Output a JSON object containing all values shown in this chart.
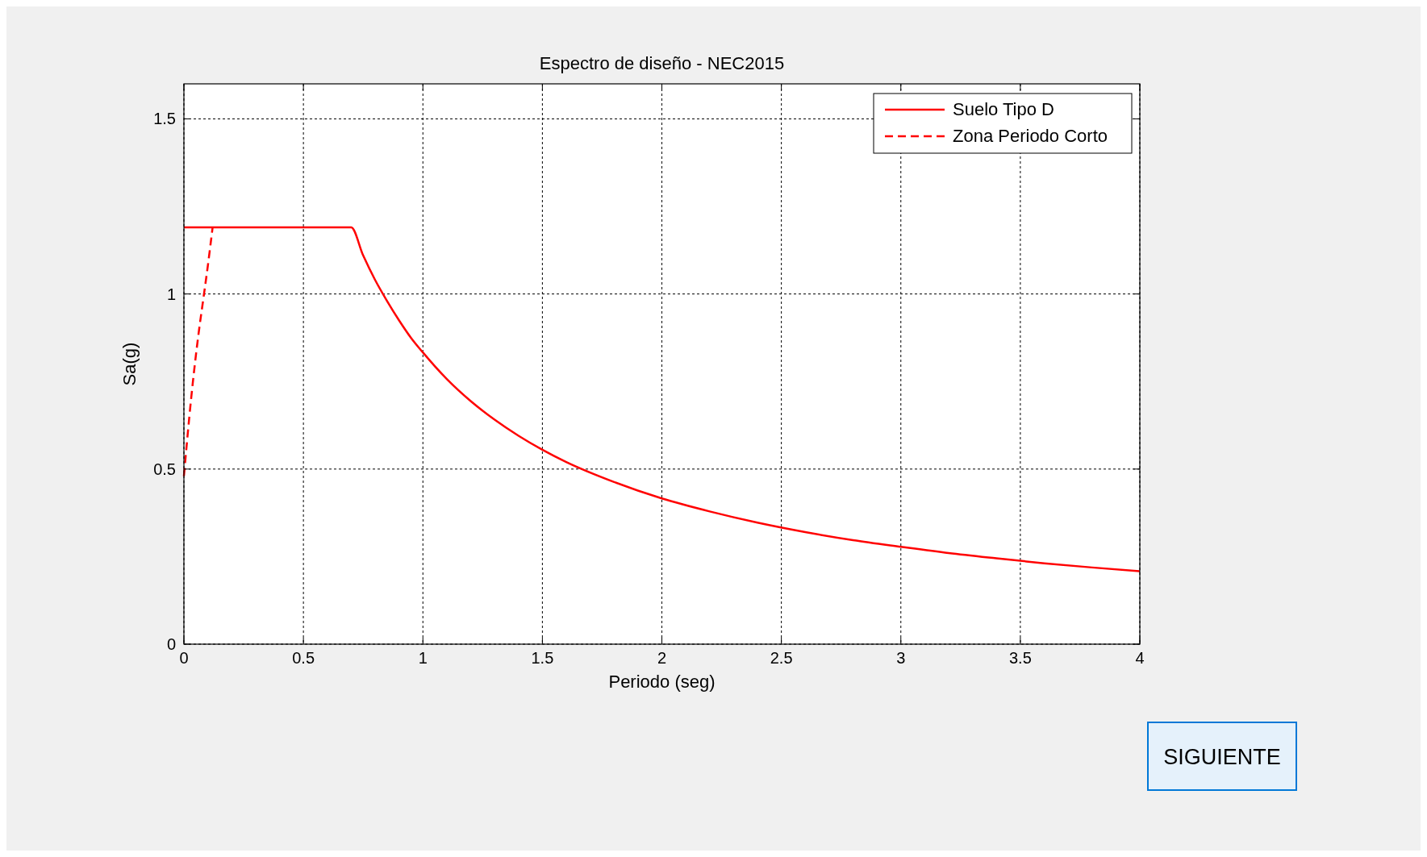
{
  "chart_data": {
    "type": "line",
    "title": "Espectro de diseño - NEC2015",
    "xlabel": "Periodo (seg)",
    "ylabel": "Sa(g)",
    "xlim": [
      0,
      4
    ],
    "ylim": [
      0,
      1.6
    ],
    "xticks": [
      0,
      0.5,
      1,
      1.5,
      2,
      2.5,
      3,
      3.5,
      4
    ],
    "yticks": [
      0,
      0.5,
      1,
      1.5
    ],
    "grid": true,
    "legend": "top right",
    "series": [
      {
        "name": "Suelo Tipo D",
        "color": "#ff0000",
        "line_style": "solid",
        "x": [
          0,
          0.2,
          0.4,
          0.6,
          0.7,
          0.75,
          0.8,
          0.85,
          0.9,
          0.95,
          1.0,
          1.1,
          1.2,
          1.3,
          1.4,
          1.5,
          1.6,
          1.8,
          2.0,
          2.2,
          2.4,
          2.6,
          2.8,
          3.0,
          3.2,
          3.4,
          3.6,
          3.8,
          4.0
        ],
        "values": [
          1.19,
          1.19,
          1.19,
          1.19,
          1.19,
          1.11,
          1.04,
          0.98,
          0.925,
          0.875,
          0.833,
          0.757,
          0.694,
          0.641,
          0.595,
          0.555,
          0.52,
          0.463,
          0.416,
          0.379,
          0.347,
          0.32,
          0.297,
          0.278,
          0.26,
          0.245,
          0.231,
          0.219,
          0.208
        ]
      },
      {
        "name": "Zona Periodo Corto",
        "color": "#ff0000",
        "line_style": "dashed",
        "x": [
          0,
          0.03,
          0.06,
          0.08,
          0.1,
          0.12
        ],
        "values": [
          0.48,
          0.7,
          0.88,
          0.98,
          1.08,
          1.19
        ]
      }
    ],
    "annotations": [
      "SIGUIENTE"
    ]
  }
}
